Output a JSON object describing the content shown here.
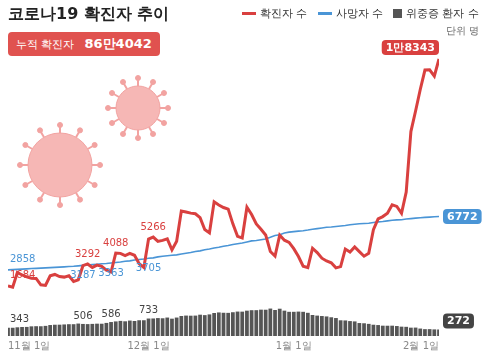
{
  "chart_data": {
    "type": "line",
    "title": "코로나19 확진자 추이",
    "cumulative_label": "누적 확진자",
    "cumulative_text": "86만4042",
    "unit": "단위 명",
    "categories": [
      "11월 1일",
      null,
      null,
      null,
      null,
      null,
      null,
      null,
      null,
      null,
      null,
      null,
      null,
      null,
      null,
      null,
      null,
      null,
      null,
      null,
      null,
      null,
      null,
      null,
      null,
      null,
      null,
      null,
      null,
      null,
      "12월 1일",
      null,
      null,
      null,
      null,
      null,
      null,
      null,
      null,
      null,
      null,
      null,
      null,
      null,
      null,
      null,
      null,
      null,
      null,
      null,
      null,
      null,
      null,
      null,
      null,
      null,
      null,
      null,
      null,
      null,
      null,
      "1월 1일",
      null,
      null,
      null,
      null,
      null,
      null,
      null,
      null,
      null,
      null,
      null,
      null,
      null,
      null,
      null,
      null,
      null,
      null,
      null,
      null,
      null,
      null,
      null,
      null,
      null,
      null,
      null,
      null,
      null,
      null,
      "2월 1일"
    ],
    "series": [
      {
        "name": "확진자 수",
        "type": "line",
        "color": "#d9403f",
        "values": [
          1684,
          1589,
          2667,
          2482,
          2344,
          2248,
          2224,
          1758,
          1715,
          2425,
          2520,
          2368,
          2324,
          2419,
          2006,
          2125,
          3163,
          3292,
          3034,
          3205,
          3120,
          2827,
          2699,
          4088,
          4068,
          3899,
          4068,
          3928,
          3309,
          3032,
          5123,
          5266,
          4944,
          5020,
          5128,
          4325,
          4954,
          7175,
          7102,
          7022,
          6977,
          6689,
          5817,
          5567,
          7850,
          7622,
          7435,
          7314,
          6236,
          5318,
          5202,
          7456,
          6919,
          6233,
          5842,
          5419,
          4207,
          3865,
          5409,
          5037,
          4875,
          4416,
          3833,
          3128,
          3022,
          4444,
          4126,
          3713,
          3511,
          3376,
          3005,
          3094,
          4388,
          4167,
          4542,
          4195,
          3858,
          4070,
          5805,
          6603,
          6767,
          7009,
          7630,
          7513,
          7008,
          8571,
          13012,
          14518,
          16096,
          17528,
          17542,
          17079,
          18343
        ],
        "value_labels": [
          "1684",
          null,
          null,
          null,
          null,
          null,
          null,
          null,
          null,
          null,
          null,
          null,
          null,
          null,
          null,
          null,
          null,
          "3292",
          null,
          null,
          null,
          null,
          null,
          "4088",
          null,
          null,
          null,
          null,
          null,
          null,
          null,
          "5266",
          null,
          null,
          null,
          null,
          null,
          null,
          null,
          null,
          null,
          null,
          null,
          null,
          null,
          null,
          null,
          null,
          null,
          null,
          null,
          null,
          null,
          null,
          null,
          null,
          null,
          null,
          null,
          null,
          null,
          null,
          null,
          null,
          null,
          null,
          null,
          null,
          null,
          null,
          null,
          null,
          null,
          null,
          null,
          null,
          null,
          null,
          null,
          null,
          null,
          null,
          null,
          null,
          null,
          null,
          null,
          null,
          null,
          null,
          null,
          null,
          "1만8343"
        ]
      },
      {
        "name": "사망자 수",
        "type": "line",
        "color": "#4a95d6",
        "values": [
          2858,
          2874,
          2892,
          2912,
          2932,
          2954,
          2968,
          2983,
          3000,
          3021,
          3040,
          3058,
          3078,
          3098,
          3120,
          3152,
          3187,
          3216,
          3245,
          3274,
          3301,
          3328,
          3363,
          3397,
          3431,
          3483,
          3519,
          3575,
          3620,
          3658,
          3705,
          3739,
          3809,
          3852,
          3893,
          3925,
          3957,
          4020,
          4077,
          4130,
          4210,
          4253,
          4330,
          4386,
          4456,
          4518,
          4591,
          4644,
          4722,
          4776,
          4830,
          4906,
          4984,
          5015,
          5071,
          5126,
          5245,
          5382,
          5433,
          5563,
          5625,
          5663,
          5702,
          5733,
          5781,
          5838,
          5882,
          5932,
          5987,
          6005,
          6037,
          6072,
          6113,
          6165,
          6210,
          6243,
          6259,
          6281,
          6333,
          6378,
          6410,
          6452,
          6501,
          6529,
          6540,
          6588,
          6620,
          6654,
          6688,
          6710,
          6732,
          6755,
          6772
        ],
        "value_labels": [
          "2858",
          null,
          null,
          null,
          null,
          null,
          null,
          null,
          null,
          null,
          null,
          null,
          null,
          null,
          null,
          null,
          "3187",
          null,
          null,
          null,
          null,
          null,
          "3363",
          null,
          null,
          null,
          null,
          null,
          null,
          null,
          "3705",
          null,
          null,
          null,
          null,
          null,
          null,
          null,
          null,
          null,
          null,
          null,
          null,
          null,
          null,
          null,
          null,
          null,
          null,
          null,
          null,
          null,
          null,
          null,
          null,
          null,
          null,
          null,
          null,
          null,
          null,
          null,
          null,
          null,
          null,
          null,
          null,
          null,
          null,
          null,
          null,
          null,
          null,
          null,
          null,
          null,
          null,
          null,
          null,
          null,
          null,
          null,
          null,
          null,
          null,
          null,
          null,
          null,
          null,
          null,
          null,
          null,
          "6772"
        ]
      },
      {
        "name": "위중증 환자 수",
        "type": "bar",
        "axis": "y2",
        "color": "#555555",
        "values": [
          343,
          346,
          365,
          378,
          381,
          405,
          411,
          409,
          425,
          460,
          473,
          475,
          485,
          495,
          495,
          522,
          506,
          499,
          508,
          517,
          515,
          549,
          586,
          612,
          634,
          617,
          647,
          629,
          661,
          661,
          733,
          736,
          752,
          744,
          774,
          727,
          774,
          840,
          857,
          852,
          856,
          894,
          876,
          906,
          964,
          989,
          975,
          971,
          997,
          1025,
          1022,
          1063,
          1083,
          1084,
          1105,
          1102,
          1151,
          1090,
          1145,
          1064,
          1015,
          1015,
          1024,
          1015,
          973,
          882,
          856,
          838,
          821,
          786,
          754,
          659,
          652,
          626,
          612,
          544,
          534,
          509,
          473,
          459,
          433,
          431,
          433,
          418,
          392,
          385,
          350,
          353,
          312,
          287,
          288,
          277,
          272
        ],
        "value_labels": [
          "343",
          null,
          null,
          null,
          null,
          null,
          null,
          null,
          null,
          null,
          null,
          null,
          null,
          null,
          null,
          null,
          "506",
          null,
          null,
          null,
          null,
          null,
          "586",
          null,
          null,
          null,
          null,
          null,
          null,
          null,
          "733",
          null,
          null,
          null,
          null,
          null,
          null,
          null,
          null,
          null,
          null,
          null,
          null,
          null,
          null,
          null,
          null,
          null,
          null,
          null,
          null,
          null,
          null,
          null,
          null,
          null,
          null,
          null,
          null,
          null,
          null,
          null,
          null,
          null,
          null,
          null,
          null,
          null,
          null,
          null,
          null,
          null,
          null,
          null,
          null,
          null,
          null,
          null,
          null,
          null,
          null,
          null,
          null,
          null,
          null,
          null,
          null,
          null,
          null,
          null,
          null,
          null,
          "272"
        ]
      }
    ],
    "ylim": [
      -2000,
      19000
    ],
    "yticks": [
      -2000,
      19000
    ],
    "y2lim": [
      0,
      12000
    ],
    "y2ticks": [
      0,
      12000
    ],
    "grid": false,
    "legend": "top right",
    "tick_labels": "x"
  }
}
